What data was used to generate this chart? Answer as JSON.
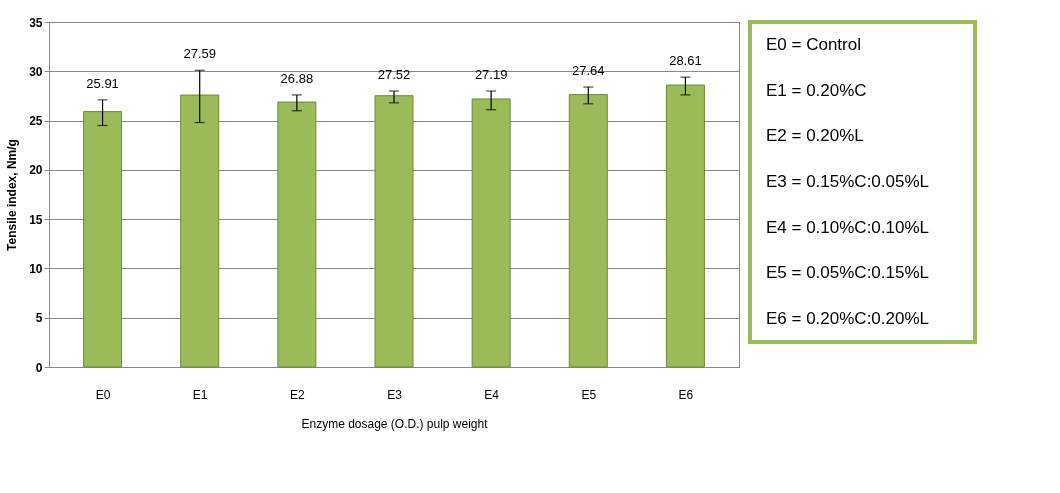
{
  "chart_data": {
    "type": "bar",
    "xlabel": "Enzyme dosage (O.D.) pulp weight",
    "ylabel": "Tensile index, Nm/g",
    "categories": [
      "E0",
      "E1",
      "E2",
      "E3",
      "E4",
      "E5",
      "E6"
    ],
    "values": [
      25.91,
      27.59,
      26.88,
      27.52,
      27.19,
      27.64,
      28.61
    ],
    "errors": [
      [
        24.5,
        27.1
      ],
      [
        24.8,
        30.1
      ],
      [
        26.0,
        27.6
      ],
      [
        26.8,
        28.0
      ],
      [
        26.1,
        28.0
      ],
      [
        26.7,
        28.4
      ],
      [
        27.6,
        29.4
      ]
    ],
    "color": "#9bbb59",
    "data_labels": true,
    "grid": "y",
    "ylim": [
      0,
      35
    ],
    "yticks": [
      0,
      5,
      10,
      15,
      20,
      25,
      30,
      35
    ],
    "annotations": [
      "E0 = Control",
      "E1 = 0.20%C",
      "E2 = 0.20%L",
      "E3 = 0.15%C:0.05%L",
      "E4 = 0.10%C:0.10%L",
      "E5 = 0.05%C:0.15%L",
      "E6 = 0.20%C:0.20%L"
    ]
  }
}
